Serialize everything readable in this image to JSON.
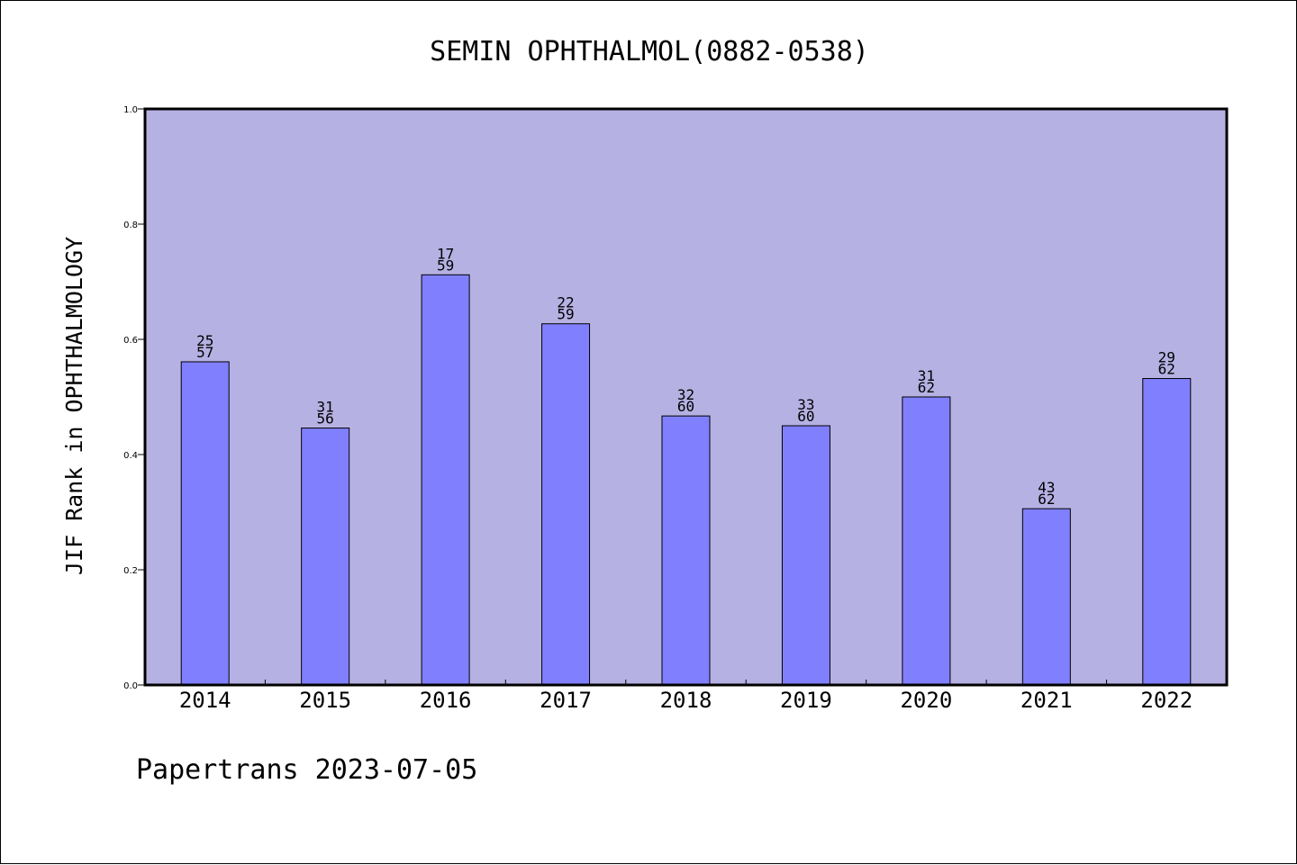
{
  "chart_data": {
    "type": "bar",
    "title": "SEMIN OPHTHALMOL(0882-0538)",
    "ylabel": "JIF Rank in OPHTHALMOLOGY",
    "xlabel": "",
    "ylim": [
      0,
      1.0
    ],
    "yticks": [
      "0.0",
      "0.2",
      "0.4",
      "0.6",
      "0.8",
      "1.0"
    ],
    "grid": false,
    "categories": [
      "2014",
      "2015",
      "2016",
      "2017",
      "2018",
      "2019",
      "2020",
      "2021",
      "2022"
    ],
    "values": [
      0.561,
      0.446,
      0.712,
      0.627,
      0.467,
      0.45,
      0.5,
      0.306,
      0.532
    ],
    "labels_top": [
      "25",
      "31",
      "17",
      "22",
      "32",
      "33",
      "31",
      "43",
      "29"
    ],
    "labels_bottom": [
      "57",
      "56",
      "59",
      "59",
      "60",
      "60",
      "62",
      "62",
      "62"
    ],
    "colors": {
      "plot_bg": "#b6b1e3",
      "bar_fill": "#8080ff",
      "axis": "#000000"
    }
  },
  "footer": {
    "text": "Papertrans 2023-07-05"
  }
}
